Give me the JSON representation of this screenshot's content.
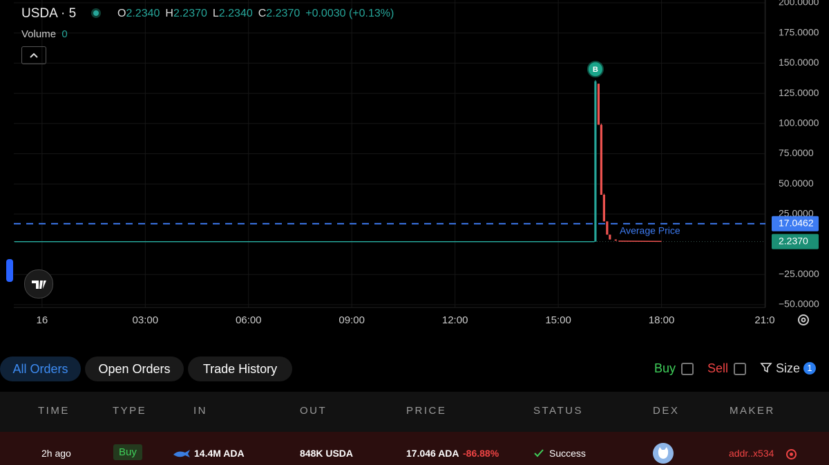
{
  "header": {
    "symbol": "USDA · 5",
    "ohlc": [
      {
        "key": "O",
        "value": "2.2340"
      },
      {
        "key": "H",
        "value": "2.2370"
      },
      {
        "key": "L",
        "value": "2.2340"
      },
      {
        "key": "C",
        "value": "2.2370"
      }
    ],
    "change": "+0.0030 (+0.13%)",
    "volume_label": "Volume",
    "volume_value": "0"
  },
  "chart_data": {
    "type": "candlestick",
    "x": [
      16.08,
      16.17,
      16.25,
      16.33,
      16.42,
      16.5,
      16.67
    ],
    "open": [
      2.2,
      133,
      99,
      41,
      19,
      8,
      4
    ],
    "high": [
      136,
      133,
      100,
      42,
      19,
      8,
      4
    ],
    "low": [
      2.2,
      99,
      41,
      19,
      8,
      4,
      3
    ],
    "close": [
      135,
      99,
      41,
      19,
      8,
      4,
      3
    ],
    "up_color": "#26a69a",
    "down_color": "#ef5350",
    "lines": [
      {
        "color": "#26a69a",
        "x": [
          -0.8,
          16.05
        ],
        "values": [
          2.2,
          2.2
        ]
      },
      {
        "color": "#ef5350",
        "x": [
          16.75,
          18.0
        ],
        "values": [
          2.6,
          2.4
        ]
      }
    ],
    "xlim": [
      -0.82,
      21.02
    ],
    "ylim": [
      -52.3,
      202.3
    ],
    "xticks": [
      {
        "value": 0,
        "label": "16"
      },
      {
        "value": 3,
        "label": "03:00"
      },
      {
        "value": 6,
        "label": "06:00"
      },
      {
        "value": 9,
        "label": "09:00"
      },
      {
        "value": 12,
        "label": "12:00"
      },
      {
        "value": 15,
        "label": "15:00"
      },
      {
        "value": 18,
        "label": "18:00"
      },
      {
        "value": 21,
        "label": "21:0"
      }
    ],
    "yticks": [
      {
        "value": 200,
        "label": "200.0000"
      },
      {
        "value": 175,
        "label": "175.0000"
      },
      {
        "value": 150,
        "label": "150.0000"
      },
      {
        "value": 125,
        "label": "125.0000"
      },
      {
        "value": 100,
        "label": "100.0000"
      },
      {
        "value": 75,
        "label": "75.0000"
      },
      {
        "value": 50,
        "label": "50.0000"
      },
      {
        "value": 25,
        "label": "25.0000"
      },
      {
        "value": -25,
        "label": "−25.0000"
      },
      {
        "value": -50,
        "label": "−50.0000"
      }
    ],
    "grid": true,
    "average_price": {
      "value": 17.0462,
      "label": "17.0462",
      "text": "Average Price",
      "color": "#3d7bf2"
    },
    "last_price": {
      "value": 2.237,
      "label": "2.2370",
      "color": "#1b8f75"
    },
    "marker": {
      "x": 16.08,
      "value": 145,
      "label": "B"
    }
  },
  "tabs": [
    "All Orders",
    "Open Orders",
    "Trade History"
  ],
  "filters": {
    "buy": "Buy",
    "sell": "Sell",
    "size": "Size",
    "badge": "1"
  },
  "table": {
    "headers": [
      "TIME",
      "TYPE",
      "IN",
      "OUT",
      "PRICE",
      "STATUS",
      "DEX",
      "MAKER"
    ],
    "row": {
      "time": "2h ago",
      "type": "Buy",
      "in": "14.4M ADA",
      "out": "848K USDA",
      "price": "17.046 ADA",
      "change": "-86.88%",
      "status": "Success",
      "maker": "addr..x534"
    }
  }
}
